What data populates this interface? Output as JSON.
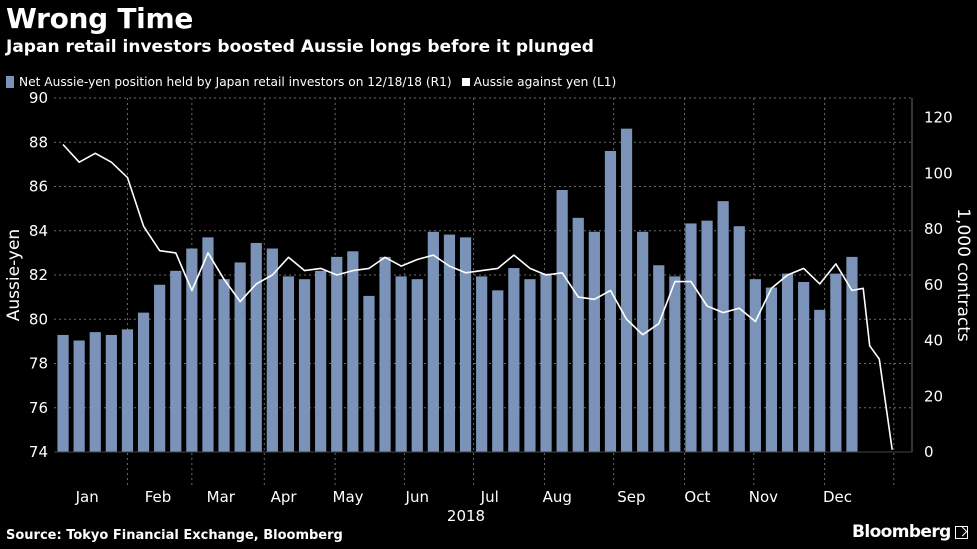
{
  "header": {
    "title": "Wrong Time",
    "subtitle": "Japan retail investors boosted Aussie longs before it plunged"
  },
  "legend": {
    "bars_label": "Net Aussie-yen position held by Japan retail investors on 12/18/18 (R1)",
    "line_label": "Aussie against yen (L1)"
  },
  "footer": {
    "source": "Source: Tokyo Financial Exchange, Bloomberg",
    "brand": "Bloomberg"
  },
  "colors": {
    "background": "#000000",
    "bars": "#7b93b8",
    "line": "#ffffff",
    "grid": "#6a6a6a",
    "text": "#ffffff"
  },
  "chart_data": {
    "type": "bar",
    "title": "Wrong Time",
    "subtitle": "Japan retail investors boosted Aussie longs before it plunged",
    "xlabel": "",
    "x_year_label": "2018",
    "x_tick_labels": [
      "Jan",
      "Feb",
      "Mar",
      "Apr",
      "May",
      "Jun",
      "Jul",
      "Aug",
      "Sep",
      "Oct",
      "Nov",
      "Dec"
    ],
    "grid": true,
    "legend_placement": "top-left",
    "left_axis": {
      "label": "Aussie-yen",
      "range": [
        74,
        90
      ],
      "ticks": [
        "74",
        "76",
        "78",
        "80",
        "82",
        "84",
        "86",
        "88",
        "90"
      ]
    },
    "right_axis": {
      "label": "1,000 contracts",
      "range": [
        0,
        127
      ],
      "ticks": [
        "0",
        "20",
        "40",
        "60",
        "80",
        "100",
        "120"
      ]
    },
    "series": [
      {
        "name": "Net Aussie-yen position held by Japan retail investors on 12/18/18 (R1)",
        "type": "bar",
        "axis": "right",
        "values": [
          42,
          40,
          43,
          42,
          44,
          50,
          60,
          65,
          73,
          77,
          62,
          68,
          75,
          73,
          63,
          62,
          65,
          70,
          72,
          56,
          70,
          63,
          62,
          79,
          78,
          77,
          63,
          58,
          66,
          62,
          64,
          94,
          84,
          79,
          108,
          116,
          79,
          67,
          63,
          82,
          83,
          90,
          81,
          62,
          59,
          64,
          61,
          51,
          64,
          70
        ]
      },
      {
        "name": "Aussie against yen (L1)",
        "type": "line",
        "axis": "left",
        "values": [
          87.9,
          87.1,
          87.5,
          87.1,
          86.4,
          84.2,
          83.1,
          83.0,
          81.3,
          83.0,
          81.8,
          80.8,
          81.6,
          82.0,
          82.8,
          82.2,
          82.3,
          82.0,
          82.2,
          82.3,
          82.8,
          82.4,
          82.7,
          82.9,
          82.4,
          82.1,
          82.2,
          82.3,
          82.9,
          82.3,
          82.0,
          82.1,
          81.0,
          80.9,
          81.3,
          80.0,
          79.3,
          79.8,
          81.7,
          81.7,
          80.6,
          80.3,
          80.5,
          79.9,
          81.4,
          82.0,
          82.3,
          81.6,
          82.5,
          81.3,
          81.4,
          78.8,
          78.2,
          74.1
        ],
        "line_x_slots": [
          0.5,
          1.5,
          2.5,
          3.5,
          4.5,
          5.5,
          6.5,
          7.5,
          8.5,
          9.5,
          10.5,
          11.5,
          12.5,
          13.5,
          14.5,
          15.5,
          16.5,
          17.5,
          18.5,
          19.5,
          20.5,
          21.5,
          22.5,
          23.5,
          24.5,
          25.5,
          26.5,
          27.5,
          28.5,
          29.5,
          30.5,
          31.5,
          32.5,
          33.5,
          34.5,
          35.5,
          36.5,
          37.5,
          38.5,
          39.5,
          40.5,
          41.5,
          42.5,
          43.5,
          44.5,
          45.5,
          46.5,
          47.5,
          48.5,
          49.5,
          50.2,
          50.6,
          51.2,
          52.0
        ]
      }
    ]
  }
}
